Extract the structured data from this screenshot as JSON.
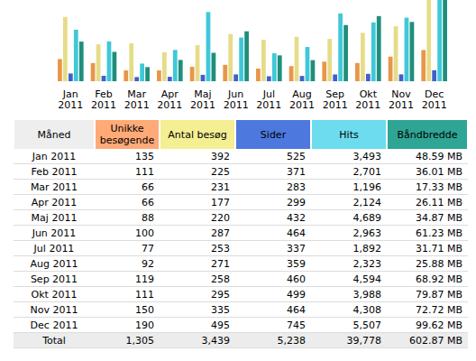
{
  "chart_data": {
    "type": "bar",
    "categories": [
      "Jan 2011",
      "Feb 2011",
      "Mar 2011",
      "Apr 2011",
      "Maj 2011",
      "Jun 2011",
      "Jul 2011",
      "Aug 2011",
      "Sep 2011",
      "Okt 2011",
      "Nov 2011",
      "Dec 2011"
    ],
    "series": [
      {
        "color": "#e8964a",
        "axis": "y",
        "values": [
          135,
          111,
          66,
          66,
          88,
          100,
          77,
          92,
          119,
          111,
          150,
          190
        ]
      },
      {
        "color": "#e6dc88",
        "axis": "y",
        "values": [
          392,
          225,
          231,
          177,
          220,
          287,
          253,
          271,
          258,
          295,
          335,
          495
        ]
      },
      {
        "color": "#3f5fd0",
        "axis": "y2",
        "values": [
          525,
          371,
          283,
          299,
          432,
          464,
          337,
          359,
          460,
          499,
          464,
          745
        ]
      },
      {
        "color": "#3fc8d8",
        "axis": "y2",
        "values": [
          3493,
          2701,
          1196,
          2124,
          4689,
          2963,
          1892,
          2323,
          4594,
          3988,
          4308,
          5507
        ]
      },
      {
        "color": "#1f8f7c",
        "axis": "y3",
        "values": [
          48.59,
          36.01,
          17.33,
          26.11,
          34.87,
          61.23,
          31.71,
          25.88,
          68.92,
          79.87,
          72.72,
          99.62
        ]
      }
    ],
    "ylim": [
      0,
      495
    ],
    "y2lim": [
      0,
      5507
    ],
    "y3lim": [
      0,
      99.62
    ],
    "tick_labels": "x",
    "grid": false
  },
  "table": {
    "header": [
      "Måned",
      "Unikke besøgende",
      "Antal besøg",
      "Sider",
      "Hits",
      "Båndbredde"
    ],
    "rows": [
      [
        "Jan 2011",
        "135",
        "392",
        "525",
        "3,493",
        "48.59 MB"
      ],
      [
        "Feb 2011",
        "111",
        "225",
        "371",
        "2,701",
        "36.01 MB"
      ],
      [
        "Mar 2011",
        "66",
        "231",
        "283",
        "1,196",
        "17.33 MB"
      ],
      [
        "Apr 2011",
        "66",
        "177",
        "299",
        "2,124",
        "26.11 MB"
      ],
      [
        "Maj 2011",
        "88",
        "220",
        "432",
        "4,689",
        "34.87 MB"
      ],
      [
        "Jun 2011",
        "100",
        "287",
        "464",
        "2,963",
        "61.23 MB"
      ],
      [
        "Jul 2011",
        "77",
        "253",
        "337",
        "1,892",
        "31.71 MB"
      ],
      [
        "Aug 2011",
        "92",
        "271",
        "359",
        "2,323",
        "25.88 MB"
      ],
      [
        "Sep 2011",
        "119",
        "258",
        "460",
        "4,594",
        "68.92 MB"
      ],
      [
        "Okt 2011",
        "111",
        "295",
        "499",
        "3,988",
        "79.87 MB"
      ],
      [
        "Nov 2011",
        "150",
        "335",
        "464",
        "4,308",
        "72.72 MB"
      ],
      [
        "Dec 2011",
        "190",
        "495",
        "745",
        "5,507",
        "99.62 MB"
      ]
    ],
    "total": [
      "Total",
      "1,305",
      "3,439",
      "5,238",
      "39,778",
      "602.87 MB"
    ]
  }
}
